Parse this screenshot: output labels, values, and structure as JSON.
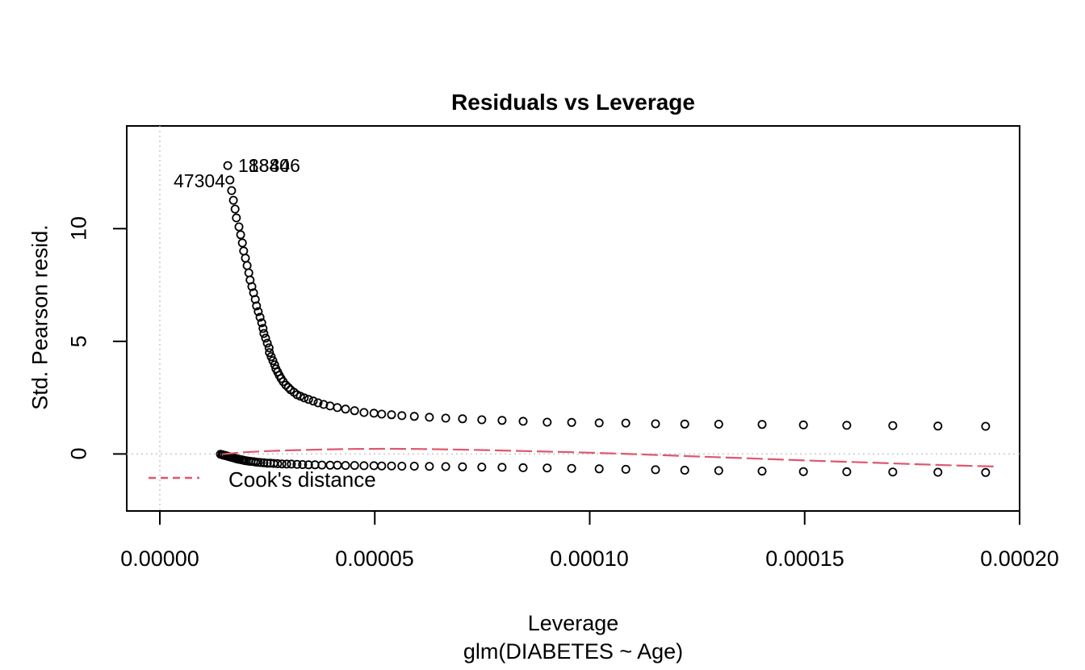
{
  "figure": {
    "title": "Residuals vs Leverage",
    "x_axis": {
      "label": "Leverage",
      "sub_label": "glm(DIABETES ~ Age)",
      "tick_labels": [
        "0.00000",
        "0.00005",
        "0.00010",
        "0.00015",
        "0.00020"
      ]
    },
    "y_axis": {
      "label": "Std. Pearson resid.",
      "tick_labels": [
        "0",
        "5",
        "10"
      ]
    },
    "legend": {
      "label": "Cook's distance"
    },
    "point_labels": [
      "18840",
      "18846",
      "47304"
    ],
    "colors": {
      "points": "#000000",
      "cooks_line": "#e0566c",
      "reference_line": "#c8c8c8",
      "axis": "#000000",
      "background": "#ffffff"
    }
  },
  "chart_data": {
    "type": "scatter",
    "title": "Residuals vs Leverage",
    "xlabel": "Leverage",
    "sublabel": "glm(DIABETES ~ Age)",
    "ylabel": "Std. Pearson resid.",
    "x_unit": 1e-05,
    "x_unit_note": "all x values below are leverage in units of 1e-5",
    "xlim": [
      -0.77,
      20.0
    ],
    "ylim": [
      -2.53,
      14.56
    ],
    "grid": false,
    "legend_position": "bottomleft",
    "x_ticks": [
      {
        "value": 0,
        "label": "0.00000"
      },
      {
        "value": 5,
        "label": "0.00005"
      },
      {
        "value": 10,
        "label": "0.00010"
      },
      {
        "value": 15,
        "label": "0.00015"
      },
      {
        "value": 20,
        "label": "0.00020"
      }
    ],
    "y_ticks": [
      {
        "value": 0,
        "label": "0"
      },
      {
        "value": 5,
        "label": "5"
      },
      {
        "value": 10,
        "label": "10"
      }
    ],
    "reference_lines": {
      "horizontal_y": 0,
      "vertical_x": 0
    },
    "series": [
      {
        "name": "std-pearson-residuals-positive",
        "type": "scatter",
        "marker": "open-circle",
        "color": "#000000",
        "x": [
          1.58,
          1.63,
          1.67,
          1.71,
          1.75,
          1.78,
          1.84,
          1.88,
          1.92,
          1.95,
          1.99,
          2.03,
          2.07,
          2.1,
          2.14,
          2.18,
          2.22,
          2.25,
          2.29,
          2.33,
          2.37,
          2.4,
          2.42,
          2.46,
          2.5,
          2.54,
          2.55,
          2.59,
          2.63,
          2.67,
          2.7,
          2.74,
          2.78,
          2.82,
          2.87,
          2.93,
          2.99,
          3.04,
          3.12,
          3.19,
          3.27,
          3.36,
          3.46,
          3.57,
          3.68,
          3.81,
          3.96,
          4.13,
          4.32,
          4.53,
          4.75,
          4.98,
          5.16,
          5.39,
          5.63,
          5.92,
          6.27,
          6.65,
          7.04,
          7.49,
          7.96,
          8.45,
          9.01,
          9.58,
          10.22,
          10.84,
          11.53,
          12.21,
          13.0,
          14.01,
          14.97,
          15.98,
          17.05,
          18.1,
          19.21
        ],
        "y": [
          12.8,
          12.16,
          11.69,
          11.26,
          10.87,
          10.48,
          10.08,
          9.73,
          9.37,
          9.01,
          8.69,
          8.36,
          8.04,
          7.72,
          7.43,
          7.15,
          6.86,
          6.57,
          6.32,
          6.07,
          5.82,
          5.57,
          5.35,
          5.14,
          4.92,
          4.71,
          4.5,
          4.32,
          4.14,
          3.96,
          3.78,
          3.64,
          3.49,
          3.35,
          3.21,
          3.06,
          2.95,
          2.85,
          2.74,
          2.63,
          2.56,
          2.49,
          2.42,
          2.35,
          2.27,
          2.2,
          2.13,
          2.06,
          1.99,
          1.92,
          1.84,
          1.81,
          1.77,
          1.74,
          1.7,
          1.67,
          1.63,
          1.59,
          1.56,
          1.52,
          1.49,
          1.45,
          1.41,
          1.4,
          1.38,
          1.37,
          1.34,
          1.33,
          1.32,
          1.31,
          1.29,
          1.27,
          1.26,
          1.24,
          1.23
        ]
      },
      {
        "name": "std-pearson-residuals-negative",
        "type": "scatter",
        "marker": "open-circle",
        "color": "#000000",
        "x": [
          1.41,
          1.45,
          1.48,
          1.52,
          1.56,
          1.6,
          1.63,
          1.67,
          1.71,
          1.75,
          1.78,
          1.82,
          1.86,
          1.9,
          1.93,
          1.97,
          2.01,
          2.07,
          2.12,
          2.18,
          2.23,
          2.29,
          2.35,
          2.42,
          2.5,
          2.57,
          2.65,
          2.74,
          2.84,
          2.95,
          3.06,
          3.19,
          3.32,
          3.46,
          3.61,
          3.77,
          3.96,
          4.13,
          4.32,
          4.53,
          4.75,
          4.98,
          5.16,
          5.39,
          5.63,
          5.92,
          6.27,
          6.65,
          7.04,
          7.49,
          7.96,
          8.45,
          9.01,
          9.58,
          10.22,
          10.84,
          11.53,
          12.21,
          13.0,
          14.01,
          14.97,
          15.98,
          17.05,
          18.1,
          19.21
        ],
        "y": [
          -0.01,
          -0.03,
          -0.05,
          -0.07,
          -0.09,
          -0.11,
          -0.13,
          -0.15,
          -0.17,
          -0.19,
          -0.21,
          -0.23,
          -0.24,
          -0.26,
          -0.27,
          -0.29,
          -0.3,
          -0.32,
          -0.33,
          -0.34,
          -0.36,
          -0.37,
          -0.38,
          -0.39,
          -0.41,
          -0.41,
          -0.42,
          -0.43,
          -0.44,
          -0.45,
          -0.45,
          -0.46,
          -0.47,
          -0.48,
          -0.48,
          -0.49,
          -0.5,
          -0.5,
          -0.51,
          -0.51,
          -0.52,
          -0.52,
          -0.53,
          -0.53,
          -0.54,
          -0.54,
          -0.55,
          -0.56,
          -0.57,
          -0.58,
          -0.59,
          -0.61,
          -0.62,
          -0.64,
          -0.66,
          -0.68,
          -0.7,
          -0.72,
          -0.74,
          -0.76,
          -0.78,
          -0.79,
          -0.8,
          -0.81,
          -0.82
        ]
      },
      {
        "name": "cooks-distance-curve",
        "type": "line",
        "style": "dashed",
        "color": "#e0566c",
        "x": [
          1.45,
          1.9,
          2.5,
          3.0,
          3.8,
          4.5,
          5.3,
          6.0,
          6.8,
          7.6,
          8.5,
          9.6,
          10.6,
          11.5,
          12.5,
          13.5,
          14.5,
          15.5,
          16.5,
          17.5,
          18.5,
          19.5
        ],
        "y": [
          -0.01,
          0.07,
          0.13,
          0.16,
          0.2,
          0.22,
          0.23,
          0.22,
          0.2,
          0.17,
          0.13,
          0.08,
          0.02,
          -0.04,
          -0.11,
          -0.18,
          -0.25,
          -0.32,
          -0.38,
          -0.45,
          -0.51,
          -0.56
        ]
      }
    ],
    "labeled_points": [
      {
        "label": "18840",
        "x": 1.58,
        "y": 12.8
      },
      {
        "label": "18846",
        "x": 1.6,
        "y": 12.8
      },
      {
        "label": "47304",
        "x": 1.63,
        "y": 12.16
      }
    ],
    "legend": {
      "label": "Cook's distance",
      "line_style": "dashed",
      "line_color": "#e0566c"
    }
  }
}
